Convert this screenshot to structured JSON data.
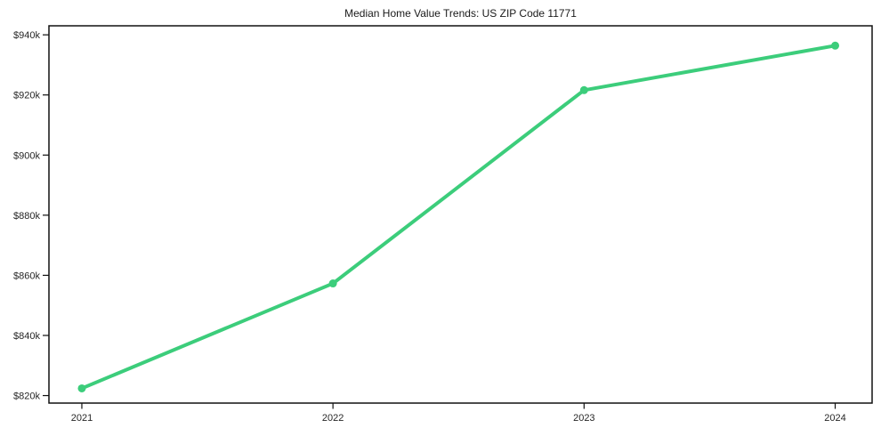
{
  "chart_data": {
    "type": "line",
    "title": "Median Home Value Trends: US ZIP Code 11771",
    "series": [
      {
        "name": "Median home value",
        "x": [
          2021,
          2022,
          2023,
          2024
        ],
        "values": [
          822.4,
          857.3,
          921.6,
          936.4
        ]
      }
    ],
    "unit": "USD thousands",
    "xlabel": "",
    "ylabel": "",
    "x_ticks": [
      2021,
      2022,
      2023,
      2024
    ],
    "x_tick_labels": [
      "2021",
      "2022",
      "2023",
      "2024"
    ],
    "y_ticks": [
      820,
      840,
      860,
      880,
      900,
      920,
      940
    ],
    "y_tick_labels": [
      "$820k",
      "$840k",
      "$860k",
      "$880k",
      "$900k",
      "$920k",
      "$940k"
    ],
    "xlim": [
      2020.869,
      2024.147
    ],
    "ylim": [
      817.5,
      943.0
    ],
    "grid": false,
    "legend_position": "none",
    "colors": {
      "line": "#3ccd7b",
      "marker": "#3ccd7b",
      "axis": "#111111",
      "tick_text": "#262626",
      "title_text": "#1a1a1a",
      "background": "#ffffff"
    }
  }
}
